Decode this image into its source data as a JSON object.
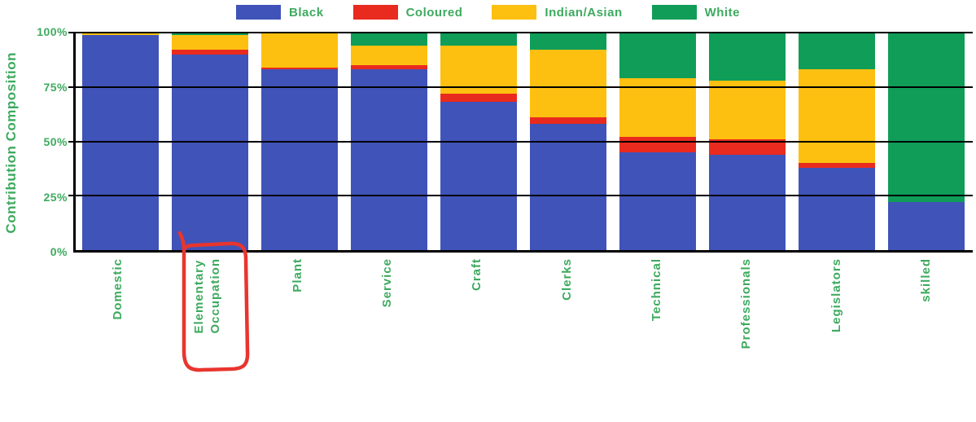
{
  "page": {
    "background": "#ffffff"
  },
  "colors": {
    "axis": "#000000",
    "label_text": "#3eaa5f",
    "annotation_red": "#e8352e"
  },
  "yaxis": {
    "title": "Contribution Composition",
    "ticks": [
      "100%",
      "75%",
      "50%",
      "25%",
      "0%"
    ]
  },
  "chart_data": {
    "type": "bar",
    "subtype": "stacked-100-percent",
    "title": "",
    "xlabel": "",
    "ylabel": "Contribution Composition",
    "ylim": [
      0,
      100
    ],
    "ytick_values": [
      0,
      25,
      50,
      75,
      100
    ],
    "grid": "horizontal",
    "legend_position": "top",
    "categories": [
      "Domestic",
      "Elementary\nOccupation",
      "Plant",
      "Service",
      "Craft",
      "Clerks",
      "Technical",
      "Professionals",
      "Legislators",
      "skilled"
    ],
    "series": [
      {
        "name": "Black",
        "color": "#4053b8",
        "values": [
          99,
          90,
          83,
          83,
          68,
          58,
          45,
          44,
          38,
          22
        ]
      },
      {
        "name": "Coloured",
        "color": "#e92a1e",
        "values": [
          0,
          2,
          1,
          2,
          4,
          3,
          7,
          7,
          2,
          0
        ]
      },
      {
        "name": "Indian/Asian",
        "color": "#fdc011",
        "values": [
          1,
          7,
          16,
          9,
          22,
          31,
          27,
          27,
          43,
          0
        ]
      },
      {
        "name": "White",
        "color": "#0f9d58",
        "values": [
          0,
          1,
          0,
          6,
          6,
          8,
          21,
          22,
          17,
          78
        ]
      }
    ],
    "annotation": "hand-drawn red rounded rectangle circling the 'Elementary Occupation' x-axis label"
  }
}
